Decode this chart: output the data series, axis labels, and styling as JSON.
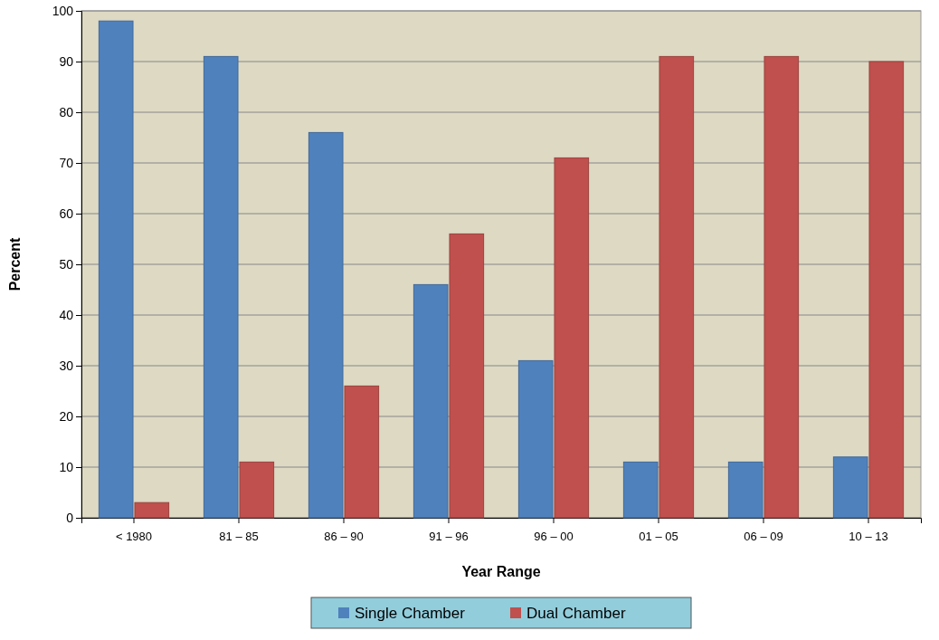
{
  "chart_data": {
    "type": "bar",
    "xlabel": "Year Range",
    "ylabel": "Percent",
    "categories": [
      "< 1980",
      "81 – 85",
      "86 – 90",
      "91 – 96",
      "96 – 00",
      "01 – 05",
      "06 – 09",
      "10 – 13"
    ],
    "series": [
      {
        "name": "Single Chamber",
        "color": "#4f81bd",
        "values": [
          98,
          91,
          76,
          46,
          31,
          11,
          11,
          12
        ]
      },
      {
        "name": "Dual Chamber",
        "color": "#c0504d",
        "values": [
          3,
          11,
          26,
          56,
          71,
          91,
          91,
          90
        ]
      }
    ],
    "ylim": [
      0,
      100
    ],
    "yticks": [
      0,
      10,
      20,
      30,
      40,
      50,
      60,
      70,
      80,
      90,
      100
    ],
    "grid": "y",
    "legend": "bottom"
  }
}
